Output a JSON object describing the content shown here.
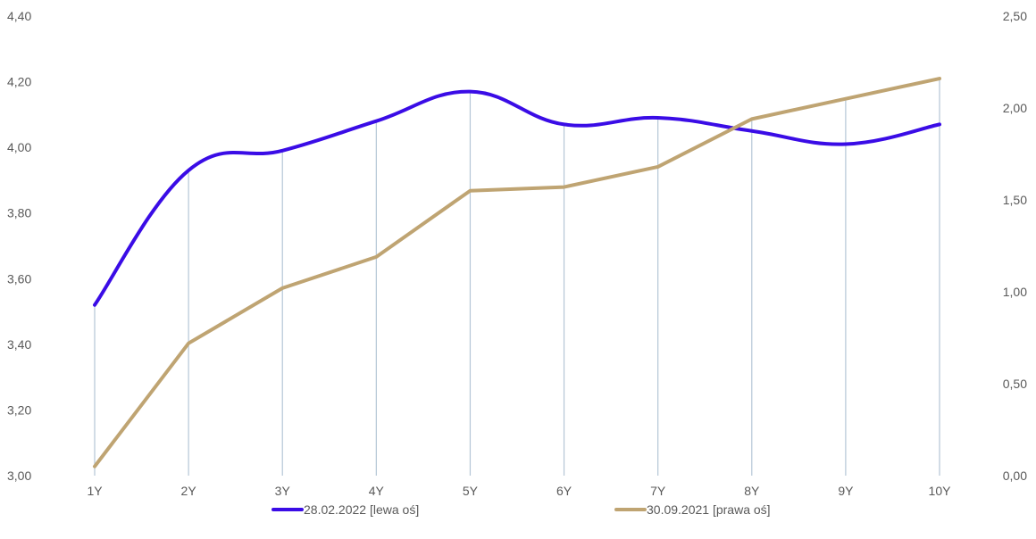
{
  "chart_data": {
    "type": "line",
    "categories": [
      "1Y",
      "2Y",
      "3Y",
      "4Y",
      "5Y",
      "6Y",
      "7Y",
      "8Y",
      "9Y",
      "10Y"
    ],
    "series": [
      {
        "name": "28.02.2022 [lewa oś]",
        "axis": "left",
        "color": "#3a0ce6",
        "smooth": true,
        "values": [
          3.52,
          3.93,
          3.99,
          4.08,
          4.17,
          4.07,
          4.09,
          4.05,
          4.01,
          4.07
        ]
      },
      {
        "name": "30.09.2021 [prawa oś]",
        "axis": "right",
        "color": "#bfa472",
        "smooth": false,
        "values": [
          0.05,
          0.72,
          1.02,
          1.19,
          1.55,
          1.57,
          1.68,
          1.94,
          2.05,
          2.16
        ]
      }
    ],
    "y_left": {
      "min": 3.0,
      "max": 4.4,
      "ticks": [
        3.0,
        3.2,
        3.4,
        3.6,
        3.8,
        4.0,
        4.2,
        4.4
      ],
      "tick_labels": [
        "3,00",
        "3,20",
        "3,40",
        "3,60",
        "3,80",
        "4,00",
        "4,20",
        "4,40"
      ]
    },
    "y_right": {
      "min": 0.0,
      "max": 2.5,
      "ticks": [
        0.0,
        0.5,
        1.0,
        1.5,
        2.0,
        2.5
      ],
      "tick_labels": [
        "0,00",
        "0,50",
        "1,00",
        "1,50",
        "2,00",
        "2,50"
      ]
    },
    "drop_lines": true,
    "drop_line_color": "#b4c6d6",
    "legend_position": "bottom",
    "title": "",
    "xlabel": "",
    "ylabel": ""
  }
}
